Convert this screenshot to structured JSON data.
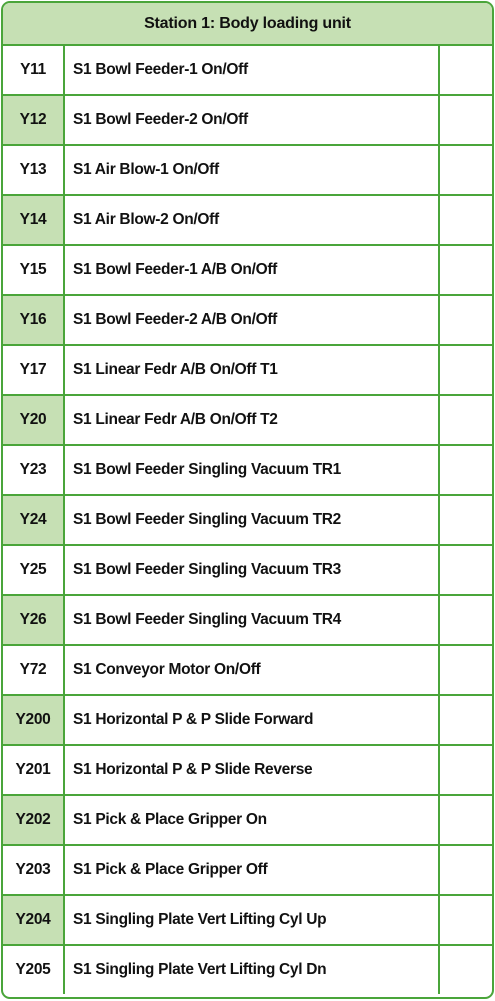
{
  "table": {
    "title": "Station 1: Body loading unit",
    "rows": [
      {
        "code": "Y11",
        "description": "S1 Bowl Feeder-1 On/Off",
        "value": ""
      },
      {
        "code": "Y12",
        "description": "S1 Bowl Feeder-2 On/Off",
        "value": ""
      },
      {
        "code": "Y13",
        "description": "S1 Air Blow-1 On/Off",
        "value": ""
      },
      {
        "code": "Y14",
        "description": "S1 Air Blow-2 On/Off",
        "value": ""
      },
      {
        "code": "Y15",
        "description": "S1 Bowl Feeder-1 A/B On/Off",
        "value": ""
      },
      {
        "code": "Y16",
        "description": "S1 Bowl Feeder-2 A/B On/Off",
        "value": ""
      },
      {
        "code": "Y17",
        "description": "S1 Linear Fedr A/B On/Off T1",
        "value": ""
      },
      {
        "code": "Y20",
        "description": "S1 Linear Fedr A/B On/Off T2",
        "value": ""
      },
      {
        "code": "Y23",
        "description": "S1 Bowl Feeder Singling Vacuum TR1",
        "value": ""
      },
      {
        "code": "Y24",
        "description": "S1 Bowl Feeder Singling Vacuum TR2",
        "value": ""
      },
      {
        "code": "Y25",
        "description": "S1 Bowl Feeder Singling Vacuum TR3",
        "value": ""
      },
      {
        "code": "Y26",
        "description": "S1 Bowl Feeder Singling Vacuum TR4",
        "value": ""
      },
      {
        "code": "Y72",
        "description": "S1 Conveyor Motor On/Off",
        "value": ""
      },
      {
        "code": "Y200",
        "description": "S1 Horizontal P & P Slide Forward",
        "value": ""
      },
      {
        "code": "Y201",
        "description": "S1 Horizontal P & P Slide Reverse",
        "value": ""
      },
      {
        "code": "Y202",
        "description": "S1 Pick & Place Gripper On",
        "value": ""
      },
      {
        "code": "Y203",
        "description": "S1 Pick & Place Gripper Off",
        "value": ""
      },
      {
        "code": "Y204",
        "description": "S1 Singling Plate Vert Lifting Cyl Up",
        "value": ""
      },
      {
        "code": "Y205",
        "description": "S1 Singling Plate Vert Lifting Cyl Dn",
        "value": ""
      }
    ]
  },
  "colors": {
    "border": "#4aa53a",
    "header_bg": "#c6e0b4",
    "alt_code_bg": "#c6e0b4"
  }
}
